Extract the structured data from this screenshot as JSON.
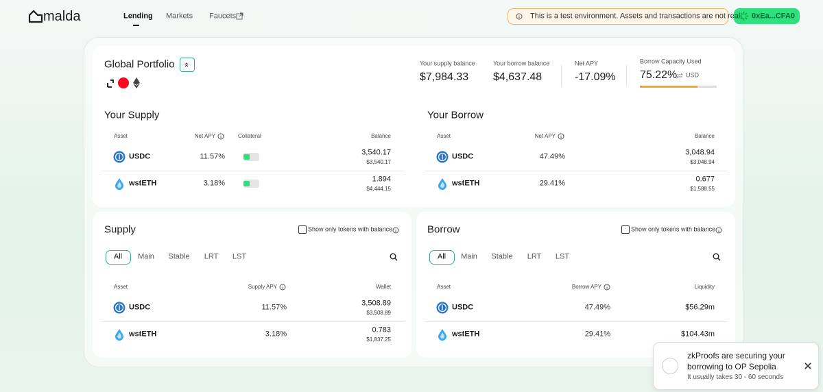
{
  "header": {
    "logo": "malda",
    "nav": [
      "Lending",
      "Markets",
      "Faucets"
    ],
    "notice": "This is a test environment. Assets and transactions are not real.",
    "wallet": "0xEa...CFA0"
  },
  "portfolio": {
    "title": "Global Portfolio",
    "stats": [
      {
        "label": "Your supply balance",
        "value": "$7,984.33"
      },
      {
        "label": "Your borrow balance",
        "value": "$4,637.48"
      },
      {
        "label": "Net APY",
        "value": "-17.09%"
      }
    ],
    "capacity": {
      "label": "Borrow Capacity Used",
      "value": {
        "value": 75.22,
        "label": "75.22%"
      },
      "unit": "USD"
    }
  },
  "your_supply": {
    "title": "Your Supply",
    "columns": [
      "Asset",
      "Net APY",
      "Collateral",
      "Balance"
    ],
    "rows": [
      [
        "USDC",
        "11.57%",
        "3,540.17",
        "$3,540.17"
      ],
      [
        "wstETH",
        "3.18%",
        "1.894",
        "$4,444.15"
      ]
    ]
  },
  "your_borrow": {
    "title": "Your Borrow",
    "columns": [
      "Asset",
      "Net APY",
      "Balance"
    ],
    "rows": [
      [
        "USDC",
        "47.49%",
        "3,048.94",
        "$3,048.94"
      ],
      [
        "wstETH",
        "29.41%",
        "0.677",
        "$1,588.55"
      ]
    ]
  },
  "supply": {
    "title": "Supply",
    "filter_label": "Show only tokens with balance",
    "tabs": [
      "All",
      "Main",
      "Stable",
      "LRT",
      "LST"
    ],
    "columns": [
      "Asset",
      "Supply APY",
      "Wallet"
    ],
    "rows": [
      [
        "USDC",
        "11.57%",
        "3,508.89",
        "$3,508.89"
      ],
      [
        "wstETH",
        "3.18%",
        "0.783",
        "$1,837.25"
      ]
    ]
  },
  "borrow": {
    "title": "Borrow",
    "filter_label": "Show only tokens with balance",
    "tabs": [
      "All",
      "Main",
      "Stable",
      "LRT",
      "LST"
    ],
    "columns": [
      "Asset",
      "Borrow APY",
      "Liquidity"
    ],
    "rows": [
      [
        "USDC",
        "47.49%",
        "$56.29m"
      ],
      [
        "wstETH",
        "29.41%",
        "$104.43m"
      ]
    ]
  },
  "toast": {
    "message": "zkProofs are securing your borrowing to OP Sepolia",
    "detail": "It usually takes 30 - 60 seconds"
  }
}
